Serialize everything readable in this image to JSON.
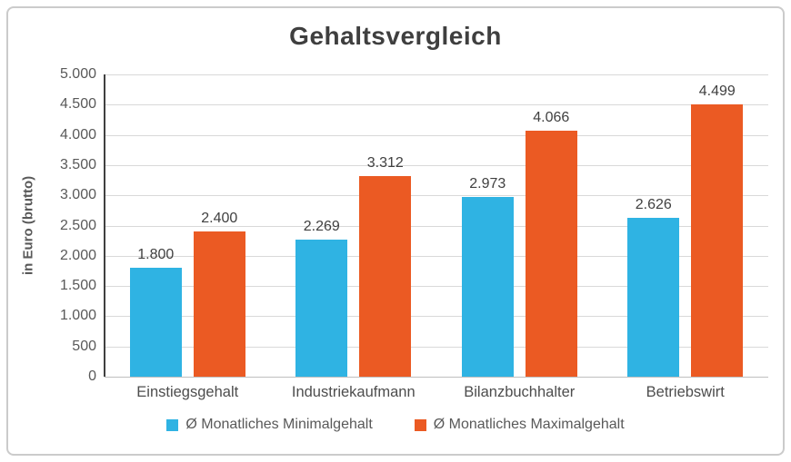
{
  "chart_data": {
    "type": "bar",
    "title": "Gehaltsvergleich",
    "ylabel": "in Euro (brutto)",
    "xlabel": "",
    "categories": [
      "Einstiegsgehalt",
      "Industriekaufmann",
      "Bilanzbuchhalter",
      "Betriebswirt"
    ],
    "series": [
      {
        "name": "Ø Monatliches Minimalgehalt",
        "color": "#2FB3E3",
        "values": [
          1800,
          2269,
          2973,
          2626
        ],
        "labels": [
          "1.800",
          "2.269",
          "2.973",
          "2.626"
        ]
      },
      {
        "name": "Ø Monatliches Maximalgehalt",
        "color": "#EB5A23",
        "values": [
          2400,
          3312,
          4066,
          4499
        ],
        "labels": [
          "2.400",
          "3.312",
          "4.066",
          "4.499"
        ]
      }
    ],
    "ylim": [
      0,
      5000
    ],
    "ytick_step": 500,
    "ytick_labels_top_to_bottom": [
      "5.000",
      "4.500",
      "4.000",
      "3.500",
      "3.000",
      "2.500",
      "2.000",
      "1.500",
      "1.000",
      "500",
      "0"
    ],
    "grid": true,
    "legend_position": "bottom"
  },
  "colors": {
    "background": "#FFFFFF",
    "card_border": "#CBCBCB",
    "title_text": "#3F3F3F",
    "axis_text": "#595959",
    "value_label_text": "#404040",
    "category_label_text": "#4D4D4D",
    "gridline": "#D9D9D9",
    "baseline": "#BFBFBF",
    "y_axis_line": "#404040"
  }
}
